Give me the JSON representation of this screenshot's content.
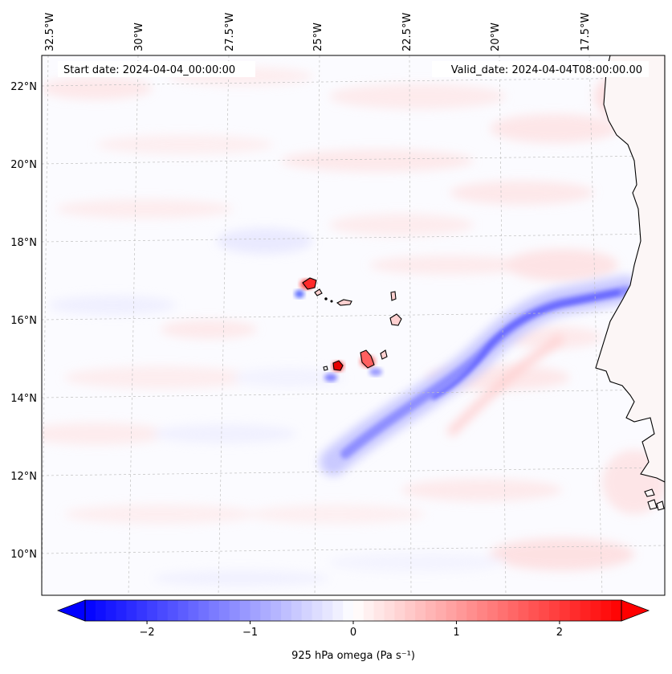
{
  "map": {
    "start_date": "Start date: 2024-04-04_00:00:00",
    "valid_date": "Valid_date: 2024-04-04T08:00:00.00",
    "lon_labels": [
      "32.5°W",
      "30°W",
      "27.5°W",
      "25°W",
      "22.5°W",
      "20°W",
      "17.5°W"
    ],
    "lat_labels": [
      "22°N",
      "20°N",
      "18°N",
      "16°N",
      "14°N",
      "12°N",
      "10°N"
    ],
    "colors": {
      "negative": "#0000ff",
      "neutral": "#ffffff",
      "positive": "#ff0000",
      "coast": "#000000"
    }
  },
  "colorbar": {
    "label": "925 hPa omega (Pa s⁻¹)",
    "ticks": [
      "−2",
      "−1",
      "0",
      "1",
      "2"
    ],
    "min": -2.6,
    "max": 2.6,
    "levels": 52
  }
}
